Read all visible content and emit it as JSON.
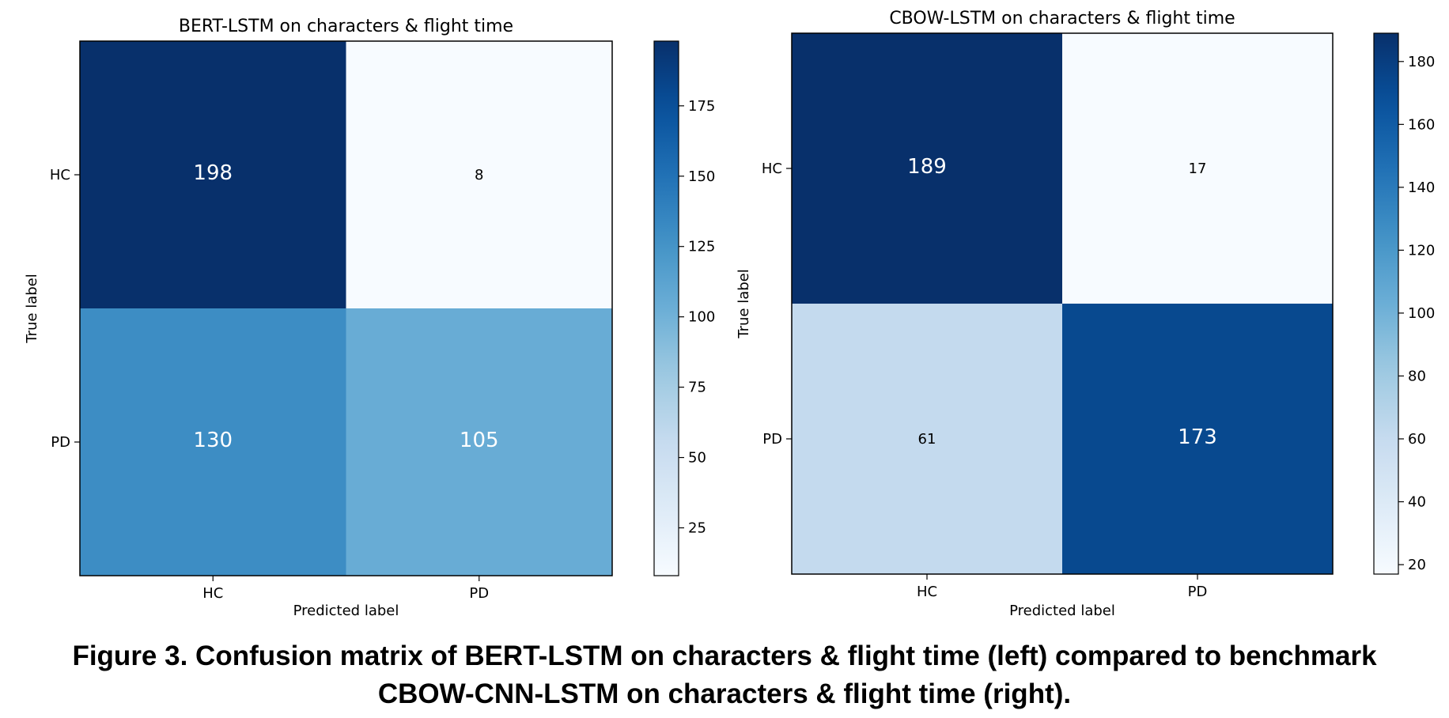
{
  "chart_data": [
    {
      "type": "heatmap",
      "title": "BERT-LSTM on characters & flight time",
      "xlabel": "Predicted label",
      "ylabel": "True label",
      "x_categories": [
        "HC",
        "PD"
      ],
      "y_categories": [
        "HC",
        "PD"
      ],
      "values": [
        [
          198,
          8
        ],
        [
          130,
          105
        ]
      ],
      "colormap": "Blues",
      "colorbar": {
        "range": [
          8,
          198
        ],
        "ticks": [
          25,
          50,
          75,
          100,
          125,
          150,
          175
        ]
      },
      "grid": false
    },
    {
      "type": "heatmap",
      "title": "CBOW-LSTM on characters & flight time",
      "xlabel": "Predicted label",
      "ylabel": "True label",
      "x_categories": [
        "HC",
        "PD"
      ],
      "y_categories": [
        "HC",
        "PD"
      ],
      "values": [
        [
          189,
          17
        ],
        [
          61,
          173
        ]
      ],
      "colormap": "Blues",
      "colorbar": {
        "range": [
          17,
          189
        ],
        "ticks": [
          20,
          40,
          60,
          80,
          100,
          120,
          140,
          160,
          180
        ]
      },
      "grid": false
    }
  ],
  "caption": {
    "line1": "Figure 3. Confusion matrix of BERT-LSTM on characters & flight time (left) compared to benchmark",
    "line2": "CBOW-CNN-LSTM on characters & flight time (right)."
  }
}
